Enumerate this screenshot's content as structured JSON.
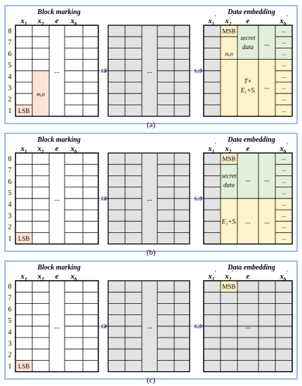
{
  "panels": [
    {
      "id": "a",
      "caption": "(a)",
      "block_marking_title": "Block marking",
      "data_embedding_title": "Data embedding",
      "left_headers": [
        "x",
        "x",
        "e",
        "x"
      ],
      "left_header_subs": [
        "1",
        "2",
        "",
        "b"
      ],
      "right_headers": [
        "x",
        "x",
        "e",
        "x"
      ],
      "right_header_subs": [
        "1",
        "2",
        "",
        "b"
      ],
      "right_header_primes": [
        "'",
        "'",
        "",
        "'"
      ],
      "row_numbers": [
        "8",
        "7",
        "6",
        "5",
        "4",
        "3",
        "2",
        "1"
      ],
      "lsb_label": "LSB",
      "mn_left_label": "m,n",
      "dots": "...",
      "key_left": "Ke",
      "key_right": "Kd",
      "msb_label": "MSB",
      "mn_right_label": "m,n",
      "secret_label_1": "secret",
      "secret_label_2": "data",
      "formula_1": "T+",
      "formula_2": "E₁+Sᵢ"
    },
    {
      "id": "b",
      "caption": "(b)",
      "block_marking_title": "Block marking",
      "data_embedding_title": "Data embedding",
      "left_headers": [
        "x",
        "x",
        "e",
        "x"
      ],
      "left_header_subs": [
        "1",
        "2",
        "",
        "b"
      ],
      "right_headers": [
        "x",
        "x",
        "e",
        "x"
      ],
      "right_header_subs": [
        "1",
        "2",
        "",
        "b"
      ],
      "right_header_primes": [
        "'",
        "'",
        "",
        "'"
      ],
      "row_numbers": [
        "8",
        "7",
        "6",
        "5",
        "4",
        "3",
        "2",
        "1"
      ],
      "lsb_label": "LSB",
      "dots": "...",
      "key_left": "Ke",
      "key_right": "Kd",
      "msb_label": "MSB",
      "secret_label_1": "secret",
      "secret_label_2": "data",
      "formula_1": "E₁+Sᵢ"
    },
    {
      "id": "c",
      "caption": "(c)",
      "block_marking_title": "Block marking",
      "data_embedding_title": "Data embedding",
      "left_headers": [
        "x",
        "x",
        "e",
        "x"
      ],
      "left_header_subs": [
        "1",
        "2",
        "",
        "b"
      ],
      "right_headers": [
        "x",
        "x",
        "e",
        "x"
      ],
      "right_header_subs": [
        "1",
        "2",
        "",
        "b"
      ],
      "right_header_primes": [
        "'",
        "'",
        "",
        "'"
      ],
      "row_numbers": [
        "8",
        "7",
        "6",
        "5",
        "4",
        "3",
        "2",
        "1"
      ],
      "lsb_label": "LSB",
      "dots": "...",
      "key_left": "Ke",
      "key_right": "Kd",
      "msb_label": "MSB"
    }
  ],
  "colors": {
    "border_blue": "#5b8fd6",
    "grid_gray": "#e3e3e3",
    "lsb_pink": "#fde3d6",
    "secret_green": "#e2efdb",
    "formula_yellow": "#fff3c9",
    "arrow_blue": "#4a7fd0"
  }
}
